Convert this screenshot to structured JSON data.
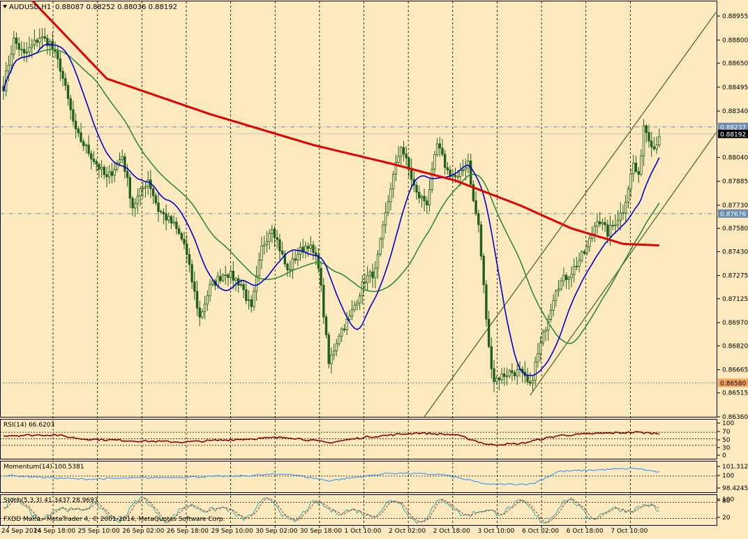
{
  "header": {
    "symbol_label": "AUDUSD,H1",
    "ohlc_text": "0.88087 0.88252 0.88036 0.88192"
  },
  "footer": {
    "copyright": "FXDD Malta - MetaTrader 4, © 2001-2014, MetaQuotes Software Corp."
  },
  "colors": {
    "background": "#fce9bd",
    "candle": "#1e5e1e",
    "ma_fast": "#0000c8",
    "ma_mid": "#2e8b3e",
    "ma_slow": "#e00000",
    "channel": "#556b2f",
    "rsi": "#8b0000",
    "momentum": "#1e90ff",
    "stoch_main": "#20b2aa",
    "stoch_signal": "#cc2222"
  },
  "chart_data": [
    {
      "type": "candlestick",
      "title": "AUDUSD,H1",
      "ylim": [
        0.8636,
        0.8905
      ],
      "y_ticks": [
        0.88955,
        0.888,
        0.8865,
        0.88495,
        0.8834,
        0.8804,
        0.87885,
        0.8773,
        0.8758,
        0.8743,
        0.87275,
        0.87125,
        0.8697,
        0.8682,
        0.86665,
        0.86515,
        0.8636
      ],
      "y_tick_labels": [
        "0.88955",
        "0.88800",
        "0.88650",
        "0.88495",
        "0.88340",
        "0.88040",
        "0.87885",
        "0.87730",
        "0.87580",
        "0.87430",
        "0.87275",
        "0.87125",
        "0.86970",
        "0.86820",
        "0.86665",
        "0.86515",
        "0.86360"
      ],
      "x_labels": [
        "24 Sep 2014",
        "24 Sep 18:00",
        "25 Sep 10:00",
        "26 Sep 02:00",
        "26 Sep 18:00",
        "29 Sep 10:00",
        "30 Sep 02:00",
        "30 Sep 18:00",
        "1 Oct 10:00",
        "2 Oct 02:00",
        "2 Oct 18:00",
        "3 Oct 10:00",
        "6 Oct 02:00",
        "6 Oct 18:00",
        "7 Oct 10:00"
      ],
      "price_markers": [
        {
          "label": "0.88237",
          "value": 0.88237,
          "style": "dashdot"
        },
        {
          "label": "0.88192",
          "value": 0.88192,
          "style": "solid"
        },
        {
          "label": "0.87676",
          "value": 0.87676,
          "style": "dashdot"
        },
        {
          "label": "0.86580",
          "value": 0.8658,
          "style": "dotted",
          "highlight": true
        }
      ],
      "candle_anchors": [
        [
          0,
          0.885
        ],
        [
          4,
          0.888
        ],
        [
          8,
          0.887
        ],
        [
          14,
          0.8882
        ],
        [
          18,
          0.8878
        ],
        [
          22,
          0.8862
        ],
        [
          28,
          0.882
        ],
        [
          34,
          0.8805
        ],
        [
          40,
          0.879
        ],
        [
          46,
          0.8805
        ],
        [
          50,
          0.8772
        ],
        [
          56,
          0.879
        ],
        [
          60,
          0.877
        ],
        [
          66,
          0.876
        ],
        [
          70,
          0.8748
        ],
        [
          76,
          0.87
        ],
        [
          80,
          0.872
        ],
        [
          86,
          0.873
        ],
        [
          92,
          0.8722
        ],
        [
          96,
          0.8705
        ],
        [
          100,
          0.8745
        ],
        [
          104,
          0.876
        ],
        [
          110,
          0.873
        ],
        [
          114,
          0.8742
        ],
        [
          118,
          0.8748
        ],
        [
          122,
          0.8735
        ],
        [
          126,
          0.867
        ],
        [
          130,
          0.869
        ],
        [
          134,
          0.87
        ],
        [
          140,
          0.8725
        ],
        [
          144,
          0.873
        ],
        [
          150,
          0.8785
        ],
        [
          154,
          0.8812
        ],
        [
          160,
          0.878
        ],
        [
          164,
          0.8775
        ],
        [
          168,
          0.8812
        ],
        [
          172,
          0.8795
        ],
        [
          176,
          0.879
        ],
        [
          180,
          0.8802
        ],
        [
          182,
          0.8775
        ],
        [
          184,
          0.876
        ],
        [
          188,
          0.868
        ],
        [
          190,
          0.866
        ],
        [
          196,
          0.8665
        ],
        [
          200,
          0.8665
        ],
        [
          204,
          0.8655
        ],
        [
          206,
          0.867
        ],
        [
          210,
          0.8695
        ],
        [
          214,
          0.872
        ],
        [
          220,
          0.873
        ],
        [
          226,
          0.8745
        ],
        [
          230,
          0.8765
        ],
        [
          234,
          0.8755
        ],
        [
          240,
          0.877
        ],
        [
          244,
          0.88
        ],
        [
          246,
          0.879
        ],
        [
          248,
          0.8825
        ],
        [
          252,
          0.881
        ],
        [
          254,
          0.8819
        ]
      ],
      "ma_slow_path": [
        [
          0,
          0.8925
        ],
        [
          40,
          0.8855
        ],
        [
          80,
          0.8832
        ],
        [
          120,
          0.8812
        ],
        [
          150,
          0.88
        ],
        [
          175,
          0.8789
        ],
        [
          200,
          0.8773
        ],
        [
          220,
          0.8758
        ],
        [
          240,
          0.8748
        ],
        [
          254,
          0.8747
        ]
      ],
      "channel_lines": [
        {
          "from": [
            163,
            0.8636
          ],
          "to": [
            276,
            0.8898
          ]
        },
        {
          "from": [
            204,
            0.865
          ],
          "to": [
            276,
            0.882
          ]
        }
      ]
    },
    {
      "type": "line",
      "title": "RSI(14) 66.6203",
      "ylim": [
        0,
        100
      ],
      "y_tick_labels": [
        "100",
        "70",
        "50",
        "30",
        "0"
      ],
      "levels": [
        70,
        50,
        30
      ],
      "anchors": [
        [
          0,
          60
        ],
        [
          20,
          62
        ],
        [
          30,
          50
        ],
        [
          50,
          44
        ],
        [
          70,
          40
        ],
        [
          90,
          48
        ],
        [
          110,
          55
        ],
        [
          126,
          38
        ],
        [
          140,
          55
        ],
        [
          160,
          68
        ],
        [
          175,
          62
        ],
        [
          188,
          32
        ],
        [
          200,
          35
        ],
        [
          215,
          60
        ],
        [
          230,
          66
        ],
        [
          245,
          70
        ],
        [
          254,
          66
        ]
      ]
    },
    {
      "type": "line",
      "title": "Momentum(14) 100.5381",
      "ylim": [
        98.0,
        101.8
      ],
      "y_tick_labels": [
        "101.3121",
        "100",
        "98.4245"
      ],
      "levels": [
        100
      ],
      "anchors": [
        [
          0,
          100.1
        ],
        [
          30,
          99.6
        ],
        [
          60,
          99.8
        ],
        [
          90,
          100.0
        ],
        [
          110,
          100.3
        ],
        [
          126,
          99.4
        ],
        [
          150,
          100.4
        ],
        [
          170,
          100.2
        ],
        [
          188,
          98.9
        ],
        [
          205,
          99.0
        ],
        [
          215,
          100.6
        ],
        [
          230,
          100.8
        ],
        [
          245,
          101.0
        ],
        [
          254,
          100.5
        ]
      ]
    },
    {
      "type": "line",
      "title": "Stoch(5,3,3) 41.3437 28.9693",
      "ylim": [
        0,
        100
      ],
      "y_tick_labels": [
        "100",
        "80",
        "20"
      ],
      "levels": [
        80,
        20
      ],
      "series": [
        {
          "name": "41.3437",
          "color": "#20b2aa"
        },
        {
          "name": "28.9693",
          "color": "#cc2222"
        }
      ]
    }
  ]
}
